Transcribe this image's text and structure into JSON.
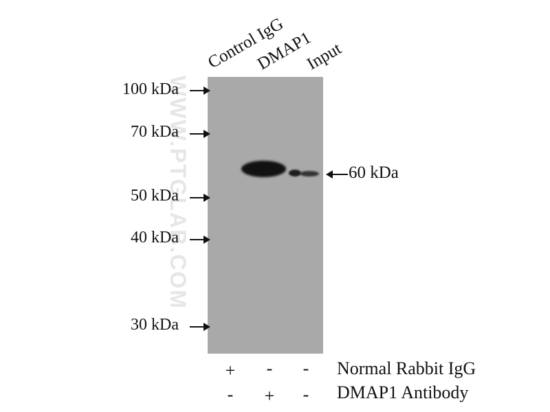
{
  "watermark": "WWW.PTGLAB.COM",
  "lanes": [
    "Control IgG",
    "DMAP1",
    "Input"
  ],
  "markers": [
    "100 kDa",
    "70 kDa",
    "50 kDa",
    "40 kDa",
    "30 kDa"
  ],
  "target": "60 kDa",
  "rows": [
    {
      "label": "Normal Rabbit IgG",
      "signs": [
        "+",
        "-",
        "-"
      ]
    },
    {
      "label": "DMAP1 Antibody",
      "signs": [
        "-",
        "+",
        "-"
      ]
    }
  ]
}
